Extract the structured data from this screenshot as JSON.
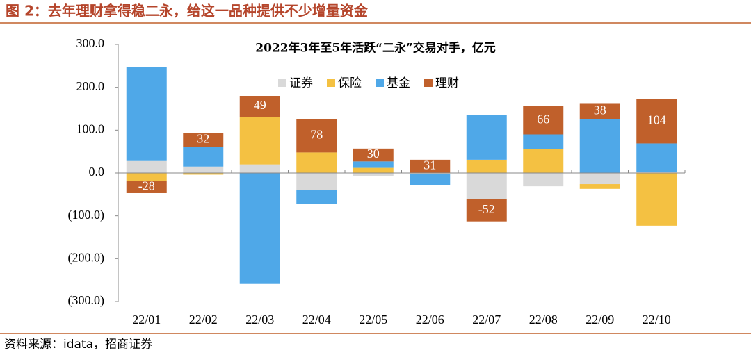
{
  "header": {
    "title": "图 2：去年理财拿得稳二永，给这一品种提供不少增量资金"
  },
  "source": "资料来源：idata，招商证券",
  "chart_data": {
    "type": "stacked_bar",
    "title": "2022年3年至5年活跃“二永”交易对手，亿元",
    "categories": [
      "22/01",
      "22/02",
      "22/03",
      "22/04",
      "22/05",
      "22/06",
      "22/07",
      "22/08",
      "22/09",
      "22/10"
    ],
    "series": [
      {
        "name": "证券",
        "color": "#d9d9d9",
        "values": [
          28,
          15,
          20,
          -39,
          -8,
          -3,
          -61,
          -31,
          -26,
          2
        ]
      },
      {
        "name": "保险",
        "color": "#f4c142",
        "values": [
          -19,
          -4,
          111,
          48,
          12,
          0,
          31,
          56,
          -11,
          -123
        ]
      },
      {
        "name": "基金",
        "color": "#4fa8e8",
        "values": [
          220,
          46,
          -259,
          -33,
          15,
          -26,
          105,
          34,
          125,
          67
        ]
      },
      {
        "name": "理财",
        "color": "#c0602b",
        "values": [
          -28,
          32,
          49,
          78,
          30,
          31,
          -52,
          66,
          38,
          104
        ],
        "data_labels": true
      }
    ],
    "ylim": [
      -300,
      300
    ],
    "yticks": [
      {
        "value": 300,
        "label": "300.0"
      },
      {
        "value": 200,
        "label": "200.0"
      },
      {
        "value": 100,
        "label": "100.0"
      },
      {
        "value": 0,
        "label": "0.0"
      },
      {
        "value": -100,
        "label": "(100.0)"
      },
      {
        "value": -200,
        "label": "(200.0)"
      },
      {
        "value": -300,
        "label": "(300.0)"
      }
    ]
  }
}
